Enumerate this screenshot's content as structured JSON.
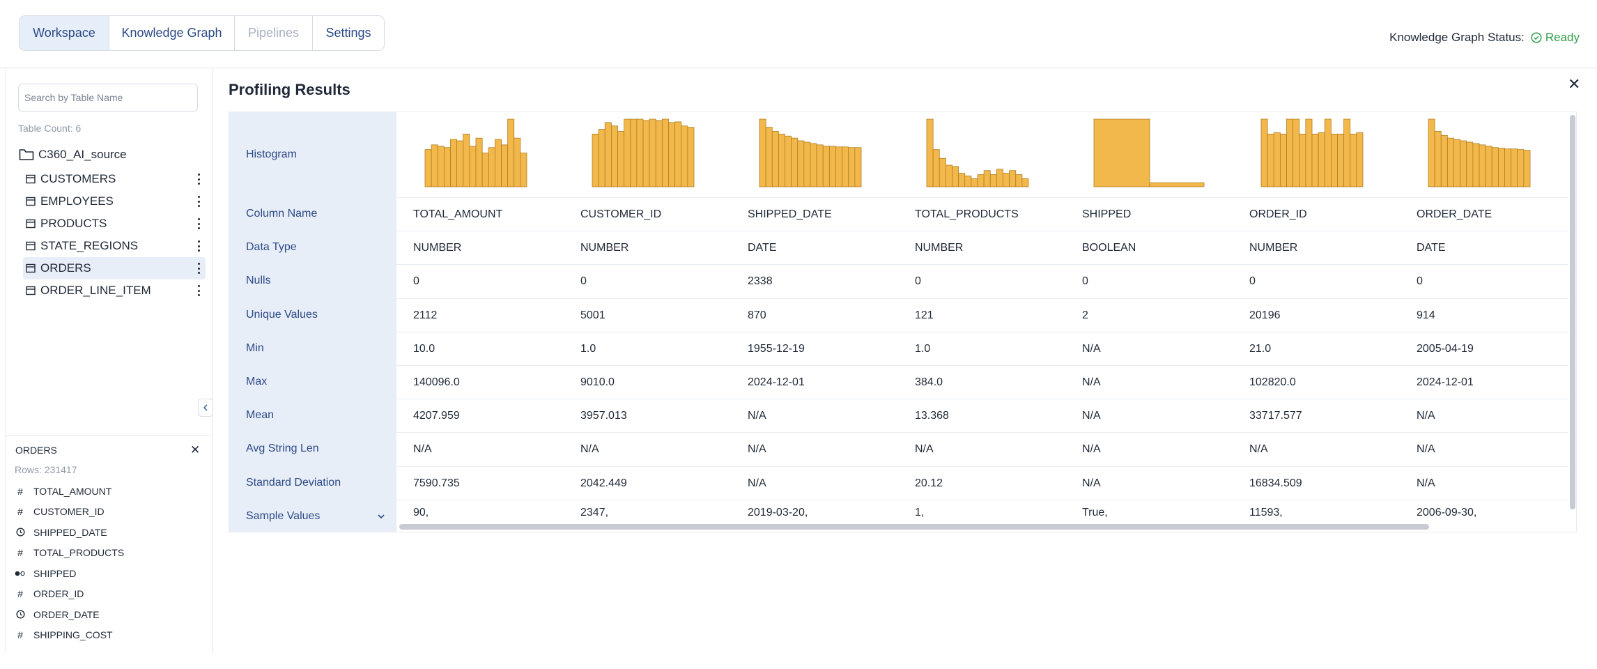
{
  "tabs": [
    {
      "label": "Workspace",
      "state": "active"
    },
    {
      "label": "Knowledge Graph",
      "state": "normal"
    },
    {
      "label": "Pipelines",
      "state": "disabled"
    },
    {
      "label": "Settings",
      "state": "normal"
    }
  ],
  "kg_status": {
    "label": "Knowledge Graph Status:",
    "value": "Ready",
    "icon": "check-circle-icon",
    "color": "#2e9e49"
  },
  "sidebar": {
    "search_placeholder": "Search by Table Name",
    "table_count": "Table Count: 6",
    "root": "C360_AI_source",
    "tables": [
      {
        "name": "CUSTOMERS",
        "selected": false
      },
      {
        "name": "EMPLOYEES",
        "selected": false
      },
      {
        "name": "PRODUCTS",
        "selected": false
      },
      {
        "name": "STATE_REGIONS",
        "selected": false
      },
      {
        "name": "ORDERS",
        "selected": true
      },
      {
        "name": "ORDER_LINE_ITEM",
        "selected": false
      }
    ],
    "detail": {
      "title": "ORDERS",
      "rows": "Rows: 231417",
      "fields": [
        {
          "name": "TOTAL_AMOUNT",
          "icon": "hash"
        },
        {
          "name": "CUSTOMER_ID",
          "icon": "hash"
        },
        {
          "name": "SHIPPED_DATE",
          "icon": "clock"
        },
        {
          "name": "TOTAL_PRODUCTS",
          "icon": "hash"
        },
        {
          "name": "SHIPPED",
          "icon": "toggle"
        },
        {
          "name": "ORDER_ID",
          "icon": "hash"
        },
        {
          "name": "ORDER_DATE",
          "icon": "clock"
        },
        {
          "name": "SHIPPING_COST",
          "icon": "hash"
        }
      ]
    }
  },
  "profiling": {
    "title": "Profiling Results",
    "row_labels": [
      "Histogram",
      "Column Name",
      "Data Type",
      "Nulls",
      "Unique Values",
      "Min",
      "Max",
      "Mean",
      "Avg String Len",
      "Standard Deviation",
      "Sample Values"
    ],
    "bar_color": "#f2b84b",
    "columns": [
      {
        "name": "TOTAL_AMOUNT",
        "type": "NUMBER",
        "nulls": "0",
        "unique": "2112",
        "min": "10.0",
        "max": "140096.0",
        "mean": "4207.959",
        "avg_len": "N/A",
        "stddev": "7590.735",
        "sample": "90,",
        "hist": [
          0.55,
          0.62,
          0.6,
          0.58,
          0.7,
          0.68,
          0.78,
          0.6,
          0.72,
          0.5,
          0.58,
          0.7,
          0.62,
          1.0,
          0.72,
          0.5
        ]
      },
      {
        "name": "CUSTOMER_ID",
        "type": "NUMBER",
        "nulls": "0",
        "unique": "5001",
        "min": "1.0",
        "max": "9010.0",
        "mean": "3957.013",
        "avg_len": "N/A",
        "stddev": "2042.449",
        "sample": "2347,",
        "hist": [
          0.78,
          0.85,
          0.95,
          0.9,
          0.82,
          1.0,
          1.0,
          1.0,
          0.98,
          1.0,
          0.98,
          1.0,
          0.95,
          0.96,
          0.9,
          0.88
        ]
      },
      {
        "name": "SHIPPED_DATE",
        "type": "DATE",
        "nulls": "2338",
        "unique": "870",
        "min": "1955-12-19",
        "max": "2024-12-01",
        "mean": "N/A",
        "avg_len": "N/A",
        "stddev": "N/A",
        "sample": "2019-03-20,",
        "hist": [
          1.0,
          0.88,
          0.82,
          0.78,
          0.75,
          0.72,
          0.68,
          0.66,
          0.64,
          0.62,
          0.6,
          0.6,
          0.59,
          0.59,
          0.58,
          0.58
        ]
      },
      {
        "name": "TOTAL_PRODUCTS",
        "type": "NUMBER",
        "nulls": "0",
        "unique": "121",
        "min": "1.0",
        "max": "384.0",
        "mean": "13.368",
        "avg_len": "N/A",
        "stddev": "20.12",
        "sample": "1,",
        "hist": [
          1.0,
          0.55,
          0.42,
          0.32,
          0.3,
          0.2,
          0.16,
          0.12,
          0.18,
          0.24,
          0.18,
          0.26,
          0.2,
          0.24,
          0.18,
          0.12
        ]
      },
      {
        "name": "SHIPPED",
        "type": "BOOLEAN",
        "nulls": "0",
        "unique": "2",
        "min": "N/A",
        "max": "N/A",
        "mean": "N/A",
        "avg_len": "N/A",
        "stddev": "N/A",
        "sample": "True,",
        "hist": [
          1.0,
          0.06
        ]
      },
      {
        "name": "ORDER_ID",
        "type": "NUMBER",
        "nulls": "0",
        "unique": "20196",
        "min": "21.0",
        "max": "102820.0",
        "mean": "33717.577",
        "avg_len": "N/A",
        "stddev": "16834.509",
        "sample": "11593,",
        "hist": [
          1.0,
          0.78,
          0.8,
          0.78,
          1.0,
          1.0,
          0.78,
          1.0,
          0.78,
          0.8,
          1.0,
          0.78,
          0.78,
          1.0,
          0.78,
          0.8
        ]
      },
      {
        "name": "ORDER_DATE",
        "type": "DATE",
        "nulls": "0",
        "unique": "914",
        "min": "2005-04-19",
        "max": "2024-12-01",
        "mean": "N/A",
        "avg_len": "N/A",
        "stddev": "N/A",
        "sample": "2006-09-30,",
        "hist": [
          1.0,
          0.82,
          0.76,
          0.72,
          0.7,
          0.68,
          0.66,
          0.64,
          0.62,
          0.6,
          0.58,
          0.57,
          0.56,
          0.56,
          0.55,
          0.54
        ]
      }
    ]
  }
}
